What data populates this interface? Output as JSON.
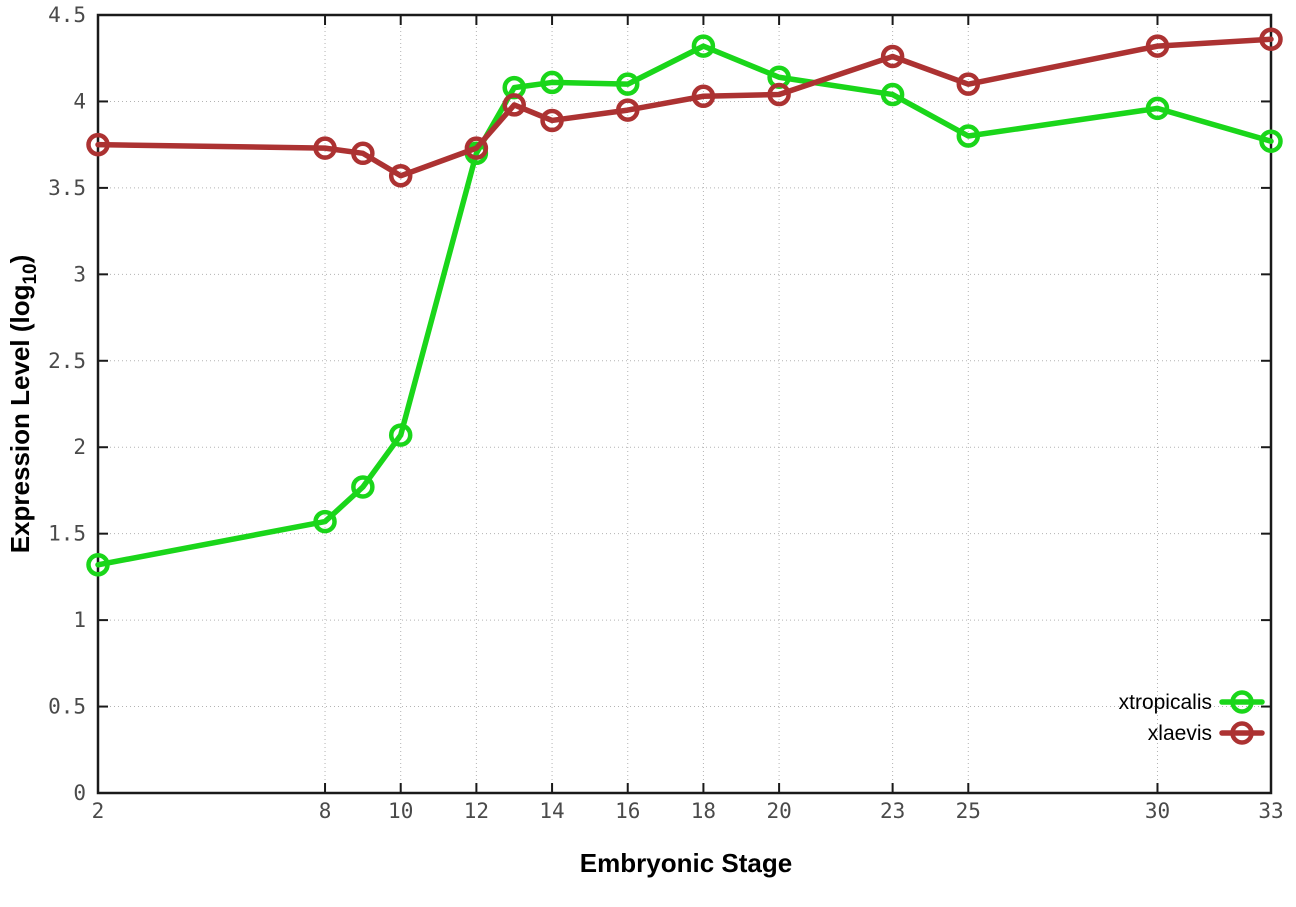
{
  "chart_data": {
    "type": "line",
    "title": "",
    "xlabel": "Embryonic Stage",
    "ylabel": "Expression Level (log10)",
    "ylabel_parts": {
      "main": "Expression Level (log",
      "sub": "10",
      "end": ")"
    },
    "x": [
      2,
      8,
      9,
      10,
      12,
      13,
      14,
      16,
      18,
      20,
      23,
      25,
      30,
      33
    ],
    "series": [
      {
        "name": "xtropicalis",
        "color": "#1ad61a",
        "marker": "open-circle",
        "values": [
          1.32,
          1.57,
          1.77,
          2.07,
          3.7,
          4.08,
          4.11,
          4.1,
          4.32,
          4.14,
          4.04,
          3.8,
          3.96,
          3.77
        ]
      },
      {
        "name": "xlaevis",
        "color": "#ac3232",
        "marker": "open-circle",
        "values": [
          3.75,
          3.73,
          3.7,
          3.57,
          3.73,
          3.98,
          3.89,
          3.95,
          4.03,
          4.04,
          4.26,
          4.1,
          4.32,
          4.36
        ]
      }
    ],
    "x_ticks": [
      2,
      8,
      10,
      12,
      14,
      16,
      18,
      20,
      23,
      25,
      30,
      33
    ],
    "y_ticks": [
      0,
      0.5,
      1,
      1.5,
      2,
      2.5,
      3,
      3.5,
      4,
      4.5
    ],
    "xlim": [
      2,
      33
    ],
    "ylim": [
      0,
      4.5
    ],
    "grid": true,
    "legend_position": "bottom-right",
    "legend": [
      "xtropicalis",
      "xlaevis"
    ]
  },
  "colors": {
    "background": "#ffffff",
    "border": "#1a1a1a",
    "grid": "#b3b3b3",
    "tick_label": "#4a4a4a",
    "axis_label": "#000000"
  }
}
